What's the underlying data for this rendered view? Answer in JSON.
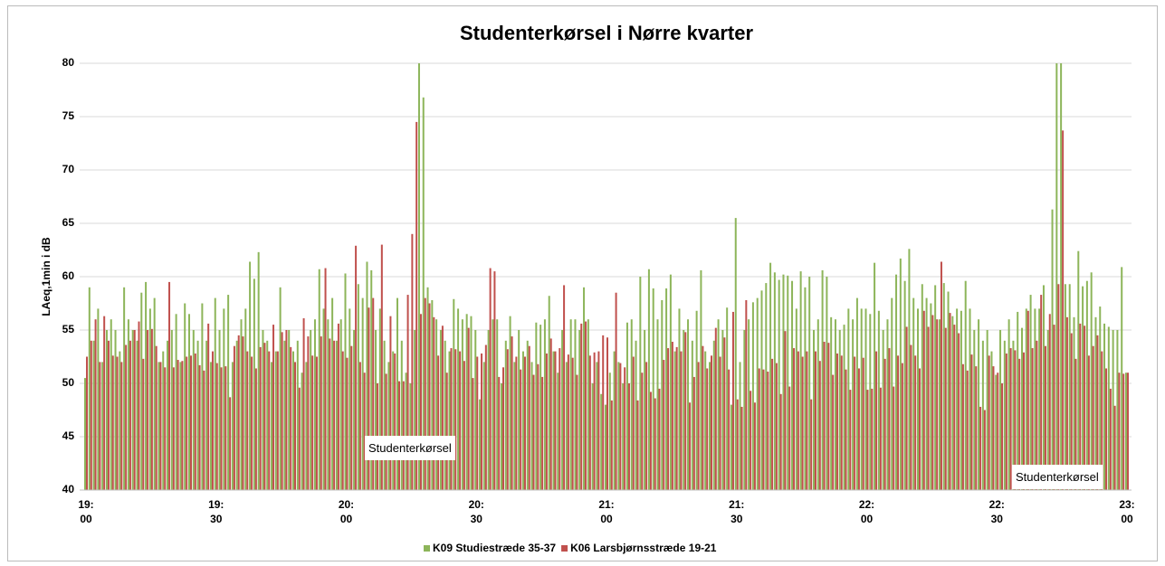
{
  "chart_data": {
    "type": "bar",
    "title": "Studenterkørsel i Nørre kvarter",
    "ylabel": "LAeq,1min i dB",
    "ylim": [
      40,
      80
    ],
    "yticks": [
      40,
      45,
      50,
      55,
      60,
      65,
      70,
      75,
      80
    ],
    "grid": true,
    "legend": "bottom",
    "annotations": [
      "Studenterkørsel",
      "Studenterkørsel"
    ],
    "categories": [
      "19: 00",
      null,
      null,
      null,
      null,
      null,
      null,
      null,
      null,
      null,
      null,
      null,
      null,
      null,
      null,
      null,
      null,
      null,
      null,
      null,
      null,
      null,
      null,
      null,
      null,
      null,
      null,
      null,
      null,
      null,
      "19: 30",
      null,
      null,
      null,
      null,
      null,
      null,
      null,
      null,
      null,
      null,
      null,
      null,
      null,
      null,
      null,
      null,
      null,
      null,
      null,
      null,
      null,
      null,
      null,
      null,
      null,
      null,
      null,
      null,
      null,
      "20: 00",
      null,
      null,
      null,
      null,
      null,
      null,
      null,
      null,
      null,
      null,
      null,
      null,
      null,
      null,
      null,
      null,
      null,
      null,
      null,
      null,
      null,
      null,
      null,
      null,
      null,
      null,
      null,
      null,
      null,
      "20: 30",
      null,
      null,
      null,
      null,
      null,
      null,
      null,
      null,
      null,
      null,
      null,
      null,
      null,
      null,
      null,
      null,
      null,
      null,
      null,
      null,
      null,
      null,
      null,
      null,
      null,
      null,
      null,
      null,
      null,
      "21: 00",
      null,
      null,
      null,
      null,
      null,
      null,
      null,
      null,
      null,
      null,
      null,
      null,
      null,
      null,
      null,
      null,
      null,
      null,
      null,
      null,
      null,
      null,
      null,
      null,
      null,
      null,
      null,
      null,
      null,
      "21: 30",
      null,
      null,
      null,
      null,
      null,
      null,
      null,
      null,
      null,
      null,
      null,
      null,
      null,
      null,
      null,
      null,
      null,
      null,
      null,
      null,
      null,
      null,
      null,
      null,
      null,
      null,
      null,
      null,
      null,
      "22: 00",
      null,
      null,
      null,
      null,
      null,
      null,
      null,
      null,
      null,
      null,
      null,
      null,
      null,
      null,
      null,
      null,
      null,
      null,
      null,
      null,
      null,
      null,
      null,
      null,
      null,
      null,
      null,
      null,
      null,
      "22: 30",
      null,
      null,
      null,
      null,
      null,
      null,
      null,
      null,
      null,
      null,
      null,
      null,
      null,
      null,
      null,
      null,
      null,
      null,
      null,
      null,
      null,
      null,
      null,
      null,
      null,
      null,
      null,
      null,
      null,
      "23: 00"
    ],
    "series": [
      {
        "name": "K09 Studiestræde 35-37",
        "color": "#8db55a",
        "values": [
          50.5,
          59,
          54,
          57,
          52,
          55,
          56,
          55,
          53,
          59,
          56,
          55,
          54,
          58.5,
          59.5,
          57,
          58,
          52,
          53,
          54,
          55,
          56.5,
          52,
          57.5,
          56.5,
          55,
          54,
          57.5,
          54,
          52,
          58,
          55,
          57,
          58.3,
          52,
          54,
          56,
          57,
          61.4,
          59.8,
          62.3,
          55,
          54,
          52,
          53,
          59,
          54,
          55,
          53,
          54,
          51,
          52,
          55,
          56,
          60.7,
          57,
          56,
          58,
          54,
          56,
          60.3,
          57,
          55,
          59.3,
          58,
          61.4,
          60.6,
          55,
          57,
          54,
          52,
          53,
          58,
          54,
          51,
          50,
          55,
          80,
          76.8,
          59,
          57.8,
          56,
          55,
          54,
          53,
          57.9,
          57,
          56,
          56.5,
          56.3,
          55,
          48.5,
          52,
          55,
          56,
          56,
          50,
          54,
          56.3,
          52,
          55,
          53,
          54,
          52,
          55.7,
          55.5,
          56,
          58.2,
          53,
          51,
          55,
          52,
          56,
          56,
          55,
          59,
          56,
          50,
          52,
          49,
          48,
          51,
          53,
          52,
          50,
          55.7,
          56,
          54,
          60,
          55,
          60.7,
          58.9,
          56,
          57.8,
          58.9,
          60.2,
          53,
          57,
          55,
          56,
          54,
          56.8,
          60.6,
          53,
          52,
          54,
          56,
          55,
          57.1,
          48,
          65.5,
          52,
          55,
          56,
          57.6,
          58,
          58.7,
          59.4,
          61.3,
          60.4,
          59.7,
          60.2,
          60.1,
          59.6,
          57,
          60.5,
          59,
          60,
          55,
          56,
          60.6,
          60,
          56.2,
          56,
          55,
          55.5,
          57,
          56,
          58,
          57,
          57,
          56.5,
          61.3,
          56.8,
          55,
          56,
          58,
          60.2,
          61.7,
          59.6,
          62.6,
          58,
          57,
          59.3,
          58,
          57.5,
          59.2,
          56,
          59.4,
          58.6,
          56.3,
          57,
          56.8,
          59.6,
          57,
          55,
          56,
          54,
          55,
          53,
          50.8,
          55,
          54,
          56,
          54,
          56.7,
          55.2,
          57,
          58.3,
          57,
          57,
          59.2,
          55,
          66.3,
          80,
          80,
          59.3,
          59.3,
          56.2,
          62.4,
          59.1,
          59.6,
          60.4,
          56.2,
          57.2,
          55.6,
          55.3,
          55,
          55,
          60.9,
          51
        ]
      },
      {
        "name": "K06 Larsbjørnsstræde 19-21",
        "color": "#c0504d",
        "values": [
          52.5,
          54,
          56,
          52,
          56.3,
          54,
          52.6,
          52.5,
          52,
          53.6,
          54,
          55,
          55.8,
          52.3,
          55,
          55.1,
          53.5,
          52,
          51.5,
          59.5,
          51.5,
          52.2,
          52.1,
          52.5,
          52.6,
          52.8,
          51.7,
          51.2,
          55.6,
          53,
          51.9,
          51.5,
          51.6,
          48.7,
          53.5,
          54.5,
          54.4,
          53,
          52.5,
          51.4,
          53.4,
          53.8,
          53,
          55.5,
          53,
          54.8,
          55,
          53.4,
          52,
          49.6,
          56.1,
          54.4,
          52.6,
          52.5,
          54.4,
          60.8,
          54.2,
          54,
          55.6,
          53,
          52.4,
          53.5,
          62.9,
          52,
          51,
          57.1,
          58,
          50,
          63,
          50.9,
          56.3,
          52.8,
          50.2,
          50.2,
          58.3,
          64,
          74.5,
          56.5,
          58,
          57.5,
          56.2,
          52.6,
          55.4,
          51,
          53.3,
          53.2,
          53,
          52.1,
          55.2,
          50.5,
          52.5,
          52.8,
          53.6,
          60.8,
          60.5,
          50.6,
          51.5,
          53.2,
          54.4,
          52.5,
          51.3,
          52.5,
          53.5,
          50.8,
          51.8,
          50.6,
          52.8,
          54.2,
          53,
          53.3,
          59.2,
          52.7,
          52.4,
          50.8,
          55.6,
          55.8,
          52.6,
          52.9,
          53,
          54.5,
          54.3,
          48.4,
          58.5,
          51.9,
          51.5,
          50,
          52.5,
          48.4,
          51,
          52,
          49.2,
          48.6,
          49.5,
          52.2,
          53.3,
          53.9,
          53.4,
          53,
          54.8,
          48.2,
          50.6,
          52,
          53.5,
          51.4,
          52.6,
          55.2,
          52.5,
          54.3,
          51.3,
          56.7,
          48.5,
          47.8,
          57.8,
          49.3,
          48.2,
          51.4,
          51.3,
          51.1,
          52.3,
          51.9,
          49,
          54.9,
          49.7,
          53.3,
          53,
          52.5,
          53,
          48.5,
          53,
          52.1,
          53.9,
          53.8,
          50.8,
          52.8,
          52.6,
          51.3,
          49.4,
          52.5,
          51.4,
          52.4,
          49.4,
          49.5,
          53,
          49.6,
          52.3,
          53.3,
          49.7,
          52.6,
          51.9,
          55.3,
          53.6,
          52.6,
          51.4,
          56.8,
          55.3,
          56.4,
          56,
          61.4,
          55.2,
          56.6,
          55.5,
          54.7,
          51.8,
          51.2,
          52.7,
          51.6,
          47.8,
          47.5,
          52.6,
          51.6,
          51,
          50,
          52.8,
          53.3,
          53.1,
          52.3,
          52.9,
          56.8,
          53.3,
          54,
          58.3,
          53.5,
          56.5,
          55.5,
          59.3,
          73.7,
          56.2,
          54.7,
          52.3,
          55.6,
          55.4,
          52.6,
          53.5,
          54.5,
          53,
          51.4,
          49.5,
          47.9,
          51,
          50.9,
          51
        ]
      }
    ]
  }
}
